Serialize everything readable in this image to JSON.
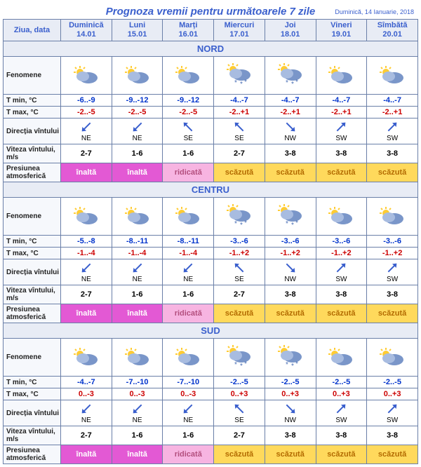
{
  "title": "Prognoza vremii pentru următoarele 7 zile",
  "subtitle": "Duminică, 14 Ianuarie, 2018",
  "headers": {
    "day_date": "Ziua, data",
    "days": [
      {
        "name": "Duminică",
        "date": "14.01"
      },
      {
        "name": "Luni",
        "date": "15.01"
      },
      {
        "name": "Marți",
        "date": "16.01"
      },
      {
        "name": "Miercuri",
        "date": "17.01"
      },
      {
        "name": "Joi",
        "date": "18.01"
      },
      {
        "name": "Vineri",
        "date": "19.01"
      },
      {
        "name": "Sîmbătă",
        "date": "20.01"
      }
    ]
  },
  "row_labels": {
    "pheno": "Fenomene",
    "tmin": "T min, °C",
    "tmax": "T max, °C",
    "wdir": "Direcția vîntului",
    "wspeed": "Viteza vîntului, m/s",
    "pressure": "Presiunea atmosferică"
  },
  "wind_arrow_color": "#3a5fcd",
  "pressure_styles": {
    "înaltă": "p-magenta",
    "ridicată": "p-pink",
    "scăzută": "p-yellow"
  },
  "regions": [
    {
      "name": "NORD",
      "pheno": [
        "cloud",
        "cloud",
        "cloud",
        "snow",
        "snow",
        "partly",
        "partly"
      ],
      "tmin": [
        "-6..-9",
        "-9..-12",
        "-9..-12",
        "-4..-7",
        "-4..-7",
        "-4..-7",
        "-4..-7"
      ],
      "tmax": [
        "-2..-5",
        "-2..-5",
        "-2..-5",
        "-2..+1",
        "-2..+1",
        "-2..+1",
        "-2..+1"
      ],
      "wdir": [
        "NE",
        "NE",
        "SE",
        "SE",
        "NW",
        "SW",
        "SW"
      ],
      "wspeed": [
        "2-7",
        "1-6",
        "1-6",
        "2-7",
        "3-8",
        "3-8",
        "3-8"
      ],
      "pressure": [
        "înaltă",
        "înaltă",
        "ridicată",
        "scăzută",
        "scăzută",
        "scăzută",
        "scăzută"
      ]
    },
    {
      "name": "CENTRU",
      "pheno": [
        "cloud",
        "cloud",
        "cloud",
        "snow",
        "snow",
        "partly",
        "partly"
      ],
      "tmin": [
        "-5..-8",
        "-8..-11",
        "-8..-11",
        "-3..-6",
        "-3..-6",
        "-3..-6",
        "-3..-6"
      ],
      "tmax": [
        "-1..-4",
        "-1..-4",
        "-1..-4",
        "-1..+2",
        "-1..+2",
        "-1..+2",
        "-1..+2"
      ],
      "wdir": [
        "NE",
        "NE",
        "NE",
        "SE",
        "NW",
        "SW",
        "SW"
      ],
      "wspeed": [
        "2-7",
        "1-6",
        "1-6",
        "2-7",
        "3-8",
        "3-8",
        "3-8"
      ],
      "pressure": [
        "înaltă",
        "înaltă",
        "ridicată",
        "scăzută",
        "scăzută",
        "scăzută",
        "scăzută"
      ]
    },
    {
      "name": "SUD",
      "pheno": [
        "cloud",
        "cloud",
        "cloud",
        "snow",
        "snow",
        "partly",
        "partly"
      ],
      "tmin": [
        "-4..-7",
        "-7..-10",
        "-7..-10",
        "-2..-5",
        "-2..-5",
        "-2..-5",
        "-2..-5"
      ],
      "tmax": [
        "0..-3",
        "0..-3",
        "0..-3",
        "0..+3",
        "0..+3",
        "0..+3",
        "0..+3"
      ],
      "wdir": [
        "NE",
        "NE",
        "NE",
        "SE",
        "NW",
        "SW",
        "SW"
      ],
      "wspeed": [
        "2-7",
        "1-6",
        "1-6",
        "2-7",
        "3-8",
        "3-8",
        "3-8"
      ],
      "pressure": [
        "înaltă",
        "înaltă",
        "ridicată",
        "scăzută",
        "scăzută",
        "scăzută",
        "scăzută"
      ]
    }
  ]
}
